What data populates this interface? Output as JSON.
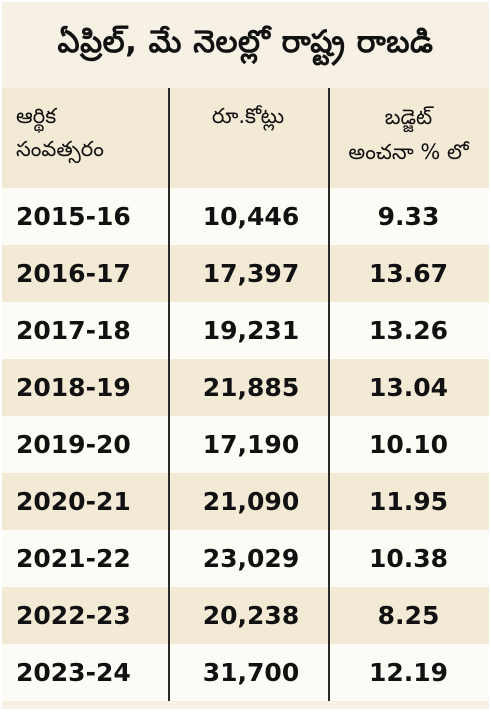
{
  "title": "ఏప్రిల్, మే నెలల్లో రాష్ట్ర రాబడి",
  "headers": {
    "year": [
      "ఆర్థిక",
      "సంవత్సరం"
    ],
    "amount": [
      "రూ.కోట్లు"
    ],
    "percent": [
      "బడ్జెట్",
      "అంచనా % లో"
    ]
  },
  "rows": [
    {
      "year": "2015-16",
      "amount": "10,446",
      "percent": "9.33"
    },
    {
      "year": "2016-17",
      "amount": "17,397",
      "percent": "13.67"
    },
    {
      "year": "2017-18",
      "amount": "19,231",
      "percent": "13.26"
    },
    {
      "year": "2018-19",
      "amount": "21,885",
      "percent": "13.04"
    },
    {
      "year": "2019-20",
      "amount": "17,190",
      "percent": "10.10"
    },
    {
      "year": "2020-21",
      "amount": "21,090",
      "percent": "11.95"
    },
    {
      "year": "2021-22",
      "amount": "23,029",
      "percent": "10.38"
    },
    {
      "year": "2022-23",
      "amount": "20,238",
      "percent": "8.25"
    },
    {
      "year": "2023-24",
      "amount": "31,700",
      "percent": "12.19"
    }
  ]
}
